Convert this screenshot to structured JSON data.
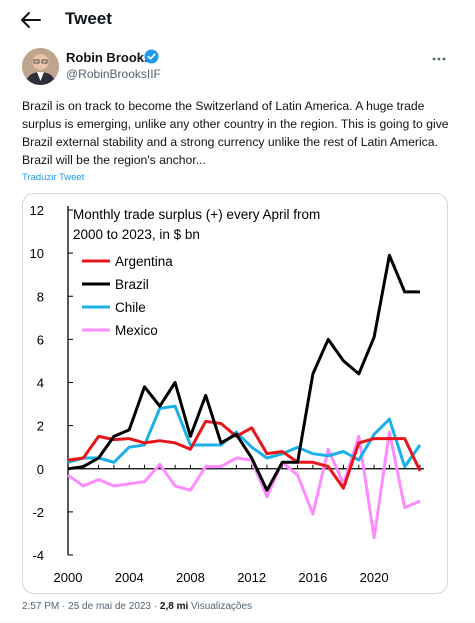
{
  "header": {
    "title": "Tweet"
  },
  "author": {
    "name": "Robin Brooks",
    "handle": "@RobinBrooksIIF"
  },
  "tweet": {
    "text": "Brazil is on track to become the Switzerland of Latin America. A huge trade surplus is emerging, unlike any other country in the region. This is going to give Brazil external stability and a strong currency unlike the rest of Latin America. Brazil will be the region's anchor...",
    "translate_label": "Traduzir Tweet"
  },
  "meta": {
    "time": "2:57 PM",
    "sep1": "·",
    "date": "25 de mai de 2023",
    "sep2": "·",
    "views": "2,8 mi",
    "views_label": "Visualizações"
  },
  "colors": {
    "accent": "#1d9bf0",
    "argentina": "#e8151b",
    "brazil": "#000000",
    "chile": "#1ab0e8",
    "mexico": "#ff8cff"
  },
  "icons": {
    "back": "arrow-left-icon",
    "verified": "verified-badge-icon",
    "more": "more-dots-icon"
  },
  "chart_data": {
    "type": "line",
    "title_line1": "Monthly trade surplus (+)  every April from",
    "title_line2": "2000  to 2023,  in $ bn",
    "x": [
      2000,
      2001,
      2002,
      2003,
      2004,
      2005,
      2006,
      2007,
      2008,
      2009,
      2010,
      2011,
      2012,
      2013,
      2014,
      2015,
      2016,
      2017,
      2018,
      2019,
      2020,
      2021,
      2022,
      2023
    ],
    "xticks": [
      2000,
      2004,
      2008,
      2012,
      2016,
      2020
    ],
    "yticks": [
      -4,
      -2,
      0,
      2,
      4,
      6,
      8,
      10,
      12
    ],
    "ylim": [
      -4,
      12
    ],
    "xlim": [
      2000,
      2023
    ],
    "grid": false,
    "legend_position": "top-left",
    "series": [
      {
        "name": "Argentina",
        "color": "#e8151b",
        "values": [
          0.4,
          0.5,
          1.5,
          1.35,
          1.4,
          1.2,
          1.3,
          1.2,
          0.9,
          2.2,
          2.1,
          1.5,
          1.9,
          0.7,
          0.8,
          0.3,
          0.3,
          0.1,
          -0.9,
          1.2,
          1.4,
          1.4,
          1.4,
          -0.1
        ]
      },
      {
        "name": "Brazil",
        "color": "#000000",
        "values": [
          0.0,
          0.1,
          0.5,
          1.5,
          1.8,
          3.8,
          2.9,
          4.0,
          1.5,
          3.4,
          1.2,
          1.6,
          0.5,
          -1.0,
          0.3,
          0.3,
          4.4,
          6.0,
          5.0,
          4.4,
          6.1,
          9.9,
          8.2,
          8.2
        ]
      },
      {
        "name": "Chile",
        "color": "#1ab0e8",
        "values": [
          0.3,
          0.5,
          0.5,
          0.3,
          1.0,
          1.1,
          2.8,
          2.9,
          1.1,
          1.1,
          1.1,
          1.7,
          1.0,
          0.5,
          0.7,
          1.0,
          0.7,
          0.6,
          0.8,
          0.4,
          1.6,
          2.3,
          0.1,
          1.1
        ]
      },
      {
        "name": "Mexico",
        "color": "#ff8cff",
        "values": [
          -0.3,
          -0.8,
          -0.5,
          -0.8,
          -0.7,
          -0.6,
          0.2,
          -0.8,
          -1.0,
          0.1,
          0.1,
          0.5,
          0.4,
          -1.3,
          0.3,
          -0.3,
          -2.1,
          0.9,
          -0.7,
          1.5,
          -3.2,
          1.7,
          -1.8,
          -1.5
        ]
      }
    ]
  }
}
